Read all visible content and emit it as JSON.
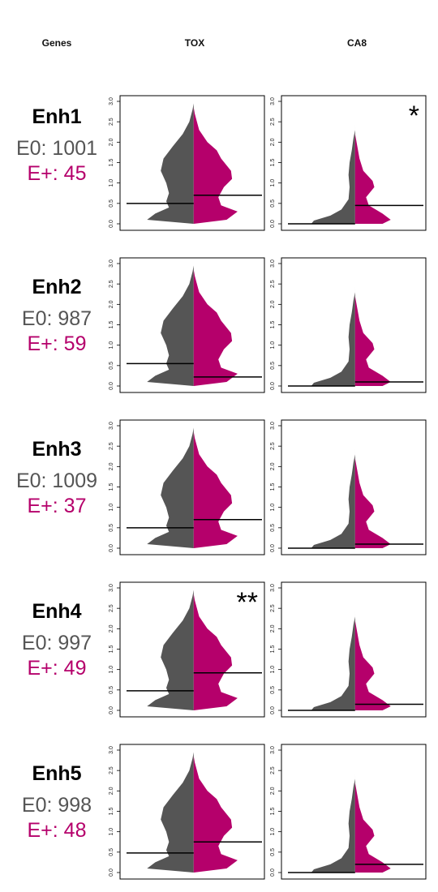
{
  "headers": {
    "genes": "Genes",
    "tox": "TOX",
    "ca8": "CA8"
  },
  "colors": {
    "e0": "#555555",
    "eplus": "#b5006b",
    "median_line": "#000000"
  },
  "rows": [
    {
      "enhancer": "Enh1",
      "e0_label": "E0: 1001",
      "eplus_label": "E+: 45"
    },
    {
      "enhancer": "Enh2",
      "e0_label": "E0: 987",
      "eplus_label": "E+: 59"
    },
    {
      "enhancer": "Enh3",
      "e0_label": "E0: 1009",
      "eplus_label": "E+: 37"
    },
    {
      "enhancer": "Enh4",
      "e0_label": "E0: 997",
      "eplus_label": "E+: 49"
    },
    {
      "enhancer": "Enh5",
      "e0_label": "E0: 998",
      "eplus_label": "E+: 48"
    }
  ],
  "chart_data": {
    "type": "split-violin",
    "columns": [
      "TOX",
      "CA8"
    ],
    "ylim": [
      0,
      3.0
    ],
    "y_ticks": [
      "0.0",
      "0.5",
      "1.0",
      "1.5",
      "2.0",
      "2.5",
      "3.0"
    ],
    "groups": [
      "E0",
      "E+"
    ],
    "panels": [
      {
        "enhancer": "Enh1",
        "gene": "TOX",
        "e0_median": 0.5,
        "eplus_median": 0.7,
        "significance": ""
      },
      {
        "enhancer": "Enh1",
        "gene": "CA8",
        "e0_median": 0.0,
        "eplus_median": 0.45,
        "significance": "*"
      },
      {
        "enhancer": "Enh2",
        "gene": "TOX",
        "e0_median": 0.55,
        "eplus_median": 0.22,
        "significance": ""
      },
      {
        "enhancer": "Enh2",
        "gene": "CA8",
        "e0_median": 0.0,
        "eplus_median": 0.1,
        "significance": ""
      },
      {
        "enhancer": "Enh3",
        "gene": "TOX",
        "e0_median": 0.5,
        "eplus_median": 0.7,
        "significance": ""
      },
      {
        "enhancer": "Enh3",
        "gene": "CA8",
        "e0_median": 0.0,
        "eplus_median": 0.1,
        "significance": ""
      },
      {
        "enhancer": "Enh4",
        "gene": "TOX",
        "e0_median": 0.48,
        "eplus_median": 0.92,
        "significance": "**"
      },
      {
        "enhancer": "Enh4",
        "gene": "CA8",
        "e0_median": 0.0,
        "eplus_median": 0.15,
        "significance": ""
      },
      {
        "enhancer": "Enh5",
        "gene": "TOX",
        "e0_median": 0.48,
        "eplus_median": 0.75,
        "significance": ""
      },
      {
        "enhancer": "Enh5",
        "gene": "CA8",
        "e0_median": 0.0,
        "eplus_median": 0.2,
        "significance": ""
      }
    ],
    "density_profiles": {
      "TOX_e0": [
        [
          0.0,
          0.0
        ],
        [
          0.1,
          0.85
        ],
        [
          0.25,
          0.7
        ],
        [
          0.4,
          0.45
        ],
        [
          0.55,
          0.5
        ],
        [
          0.75,
          0.45
        ],
        [
          1.0,
          0.5
        ],
        [
          1.3,
          0.6
        ],
        [
          1.6,
          0.55
        ],
        [
          1.9,
          0.38
        ],
        [
          2.2,
          0.2
        ],
        [
          2.5,
          0.08
        ],
        [
          2.8,
          0.02
        ]
      ],
      "TOX_eplus": [
        [
          0.0,
          0.0
        ],
        [
          0.1,
          0.6
        ],
        [
          0.3,
          0.8
        ],
        [
          0.45,
          0.5
        ],
        [
          0.65,
          0.45
        ],
        [
          0.9,
          0.55
        ],
        [
          1.1,
          0.7
        ],
        [
          1.3,
          0.68
        ],
        [
          1.6,
          0.5
        ],
        [
          1.8,
          0.42
        ],
        [
          2.0,
          0.25
        ],
        [
          2.3,
          0.1
        ],
        [
          2.7,
          0.02
        ]
      ],
      "CA8_e0": [
        [
          0.0,
          0.8
        ],
        [
          0.08,
          0.75
        ],
        [
          0.2,
          0.45
        ],
        [
          0.35,
          0.25
        ],
        [
          0.6,
          0.12
        ],
        [
          0.9,
          0.1
        ],
        [
          1.2,
          0.12
        ],
        [
          1.5,
          0.1
        ],
        [
          1.8,
          0.06
        ],
        [
          2.1,
          0.03
        ],
        [
          2.3,
          0.0
        ]
      ],
      "CA8_eplus": [
        [
          0.0,
          0.5
        ],
        [
          0.1,
          0.65
        ],
        [
          0.25,
          0.5
        ],
        [
          0.45,
          0.25
        ],
        [
          0.65,
          0.2
        ],
        [
          0.9,
          0.35
        ],
        [
          1.05,
          0.32
        ],
        [
          1.3,
          0.15
        ],
        [
          1.6,
          0.08
        ],
        [
          1.9,
          0.04
        ],
        [
          2.2,
          0.0
        ]
      ]
    }
  }
}
